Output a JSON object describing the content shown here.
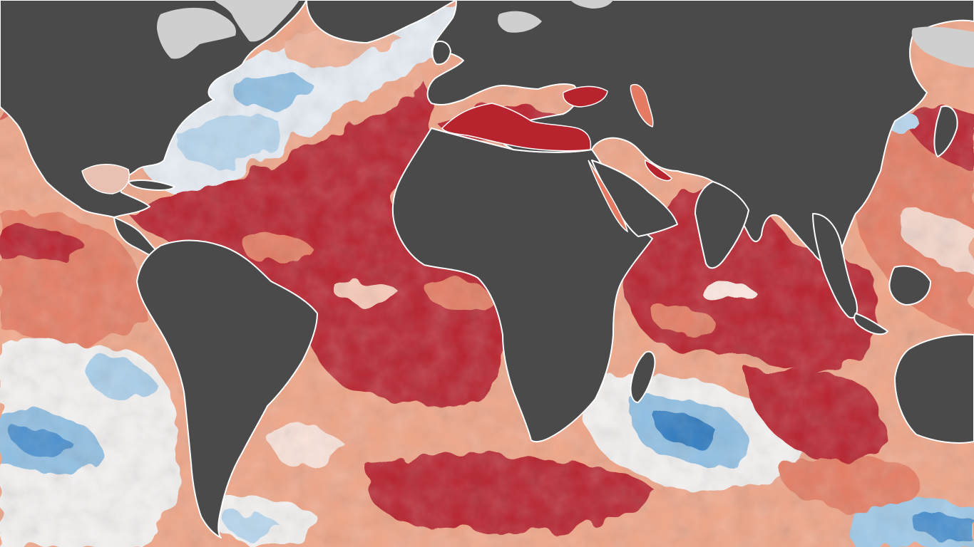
{
  "map": {
    "type": "sea-surface-temperature-anomaly",
    "projection": "equirectangular",
    "labels": [],
    "palette": {
      "land": "#4a4a4a",
      "ice": "#cfcfcf",
      "coast": "#ffffff",
      "anomaly_scale": [
        "#1f6fb6",
        "#4a90cf",
        "#9ec9e8",
        "#d6e8f4",
        "#ffffff",
        "#f9d2c3",
        "#f0a587",
        "#e57b62",
        "#b8242e"
      ]
    },
    "regions": [
      {
        "name": "north-atlantic-subtropics",
        "level": "strong-warm"
      },
      {
        "name": "tropical-atlantic",
        "level": "strong-warm"
      },
      {
        "name": "mediterranean",
        "level": "strong-warm"
      },
      {
        "name": "arabian-sea",
        "level": "strong-warm"
      },
      {
        "name": "tropical-indian-ocean",
        "level": "strong-warm"
      },
      {
        "name": "south-atlantic",
        "level": "warm"
      },
      {
        "name": "eastern-pacific",
        "level": "warm"
      },
      {
        "name": "north-atlantic-gulf-stream",
        "level": "mixed"
      },
      {
        "name": "south-pacific",
        "level": "cool"
      },
      {
        "name": "southwest-indian-ocean",
        "level": "cool"
      },
      {
        "name": "southern-ocean",
        "level": "strong-warm"
      }
    ]
  }
}
